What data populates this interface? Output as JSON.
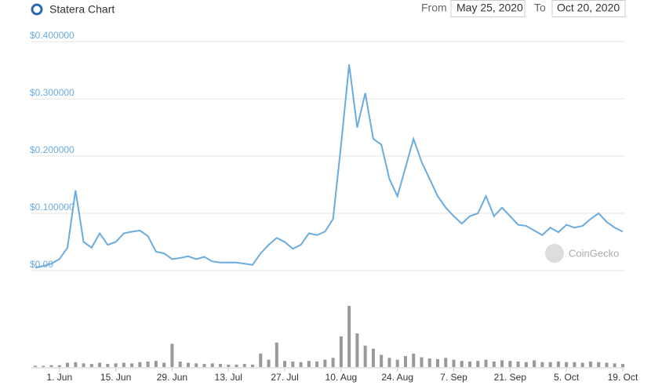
{
  "header": {
    "title": "Statera Chart",
    "from_label": "From",
    "from_date": "May 25, 2020",
    "to_label": "To",
    "to_date": "Oct 20, 2020",
    "watermark": "CoinGecko"
  },
  "chart_data": [
    {
      "type": "line",
      "color": "#6aacdf",
      "grid": true,
      "categories": [
        null,
        null,
        null,
        "1. Jun",
        null,
        null,
        null,
        null,
        null,
        null,
        "15. Jun",
        null,
        null,
        null,
        null,
        null,
        null,
        "29. Jun",
        null,
        null,
        null,
        null,
        null,
        null,
        "13. Jul",
        null,
        null,
        null,
        null,
        null,
        null,
        "27. Jul",
        null,
        null,
        null,
        null,
        null,
        null,
        "10. Aug",
        null,
        null,
        null,
        null,
        null,
        null,
        "24. Aug",
        null,
        null,
        null,
        null,
        null,
        null,
        "7. Sep",
        null,
        null,
        null,
        null,
        null,
        null,
        "21. Sep",
        null,
        null,
        null,
        null,
        null,
        null,
        "5. Oct",
        null,
        null,
        null,
        null,
        null,
        null,
        "19. Oct"
      ],
      "values": [
        0.005,
        0.008,
        0.012,
        0.02,
        0.04,
        0.14,
        0.05,
        0.04,
        0.065,
        0.045,
        0.05,
        0.065,
        0.068,
        0.07,
        0.06,
        0.033,
        0.03,
        0.02,
        0.022,
        0.025,
        0.02,
        0.024,
        0.016,
        0.014,
        0.014,
        0.014,
        0.012,
        0.01,
        0.03,
        0.045,
        0.057,
        0.05,
        0.038,
        0.045,
        0.065,
        0.062,
        0.068,
        0.09,
        0.22,
        0.36,
        0.25,
        0.31,
        0.23,
        0.22,
        0.16,
        0.13,
        0.18,
        0.23,
        0.19,
        0.16,
        0.13,
        0.11,
        0.095,
        0.082,
        0.095,
        0.1,
        0.13,
        0.095,
        0.11,
        0.095,
        0.08,
        0.078,
        0.07,
        0.062,
        0.075,
        0.067,
        0.08,
        0.075,
        0.078,
        0.09,
        0.1,
        0.085,
        0.075,
        0.068
      ],
      "ylim": [
        0,
        0.4
      ],
      "yticks": [
        {
          "value": 0,
          "label": "$0.00"
        },
        {
          "value": 0.1,
          "label": "$0.100000"
        },
        {
          "value": 0.2,
          "label": "$0.200000"
        },
        {
          "value": 0.3,
          "label": "$0.300000"
        },
        {
          "value": 0.4,
          "label": "$0.400000"
        }
      ]
    },
    {
      "type": "bar",
      "color": "#999999",
      "ylim": [
        0,
        100
      ],
      "values": [
        2,
        2,
        3,
        3,
        7,
        8,
        6,
        5,
        7,
        5,
        6,
        7,
        6,
        8,
        9,
        10,
        7,
        38,
        9,
        7,
        6,
        5,
        6,
        5,
        4,
        4,
        5,
        4,
        22,
        12,
        40,
        10,
        9,
        8,
        10,
        9,
        12,
        15,
        50,
        100,
        55,
        35,
        30,
        20,
        15,
        12,
        18,
        22,
        16,
        14,
        13,
        15,
        12,
        10,
        9,
        10,
        12,
        9,
        11,
        10,
        9,
        8,
        11,
        8,
        8,
        9,
        8,
        8,
        7,
        9,
        8,
        7,
        6,
        5
      ]
    }
  ]
}
